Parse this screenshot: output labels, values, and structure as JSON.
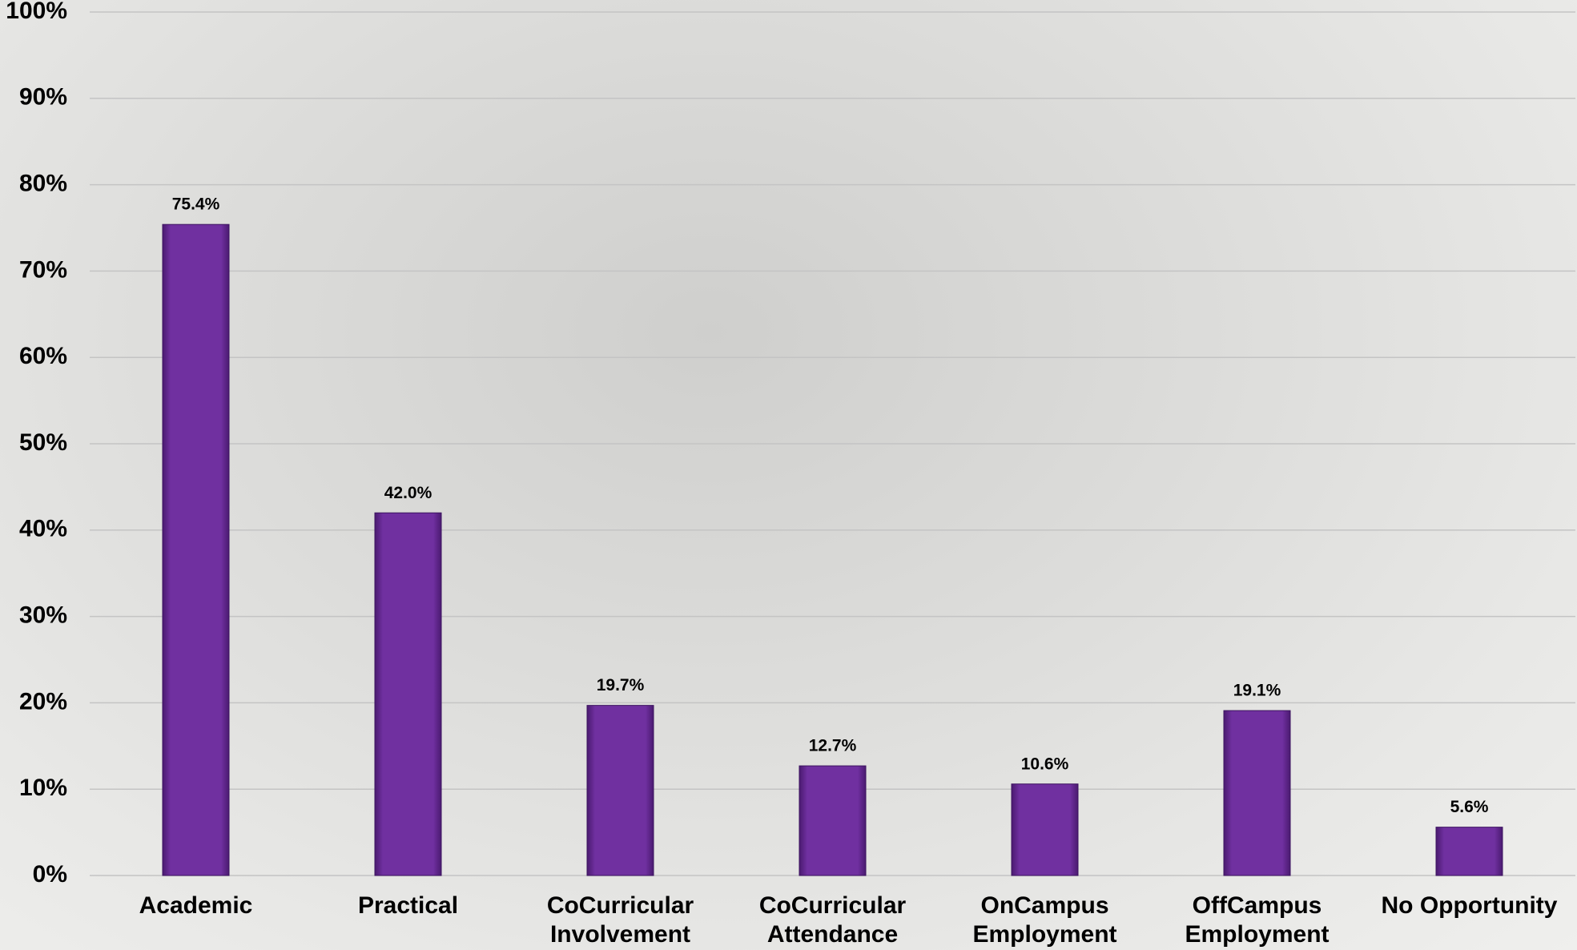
{
  "chart_data": {
    "type": "bar",
    "categories": [
      "Academic",
      "Practical",
      "CoCurricular Involvement",
      "CoCurricular Attendance",
      "OnCampus Employment",
      "OffCampus Employment",
      "No Opportunity"
    ],
    "values": [
      75.4,
      42.0,
      19.7,
      12.7,
      10.6,
      19.1,
      5.6
    ],
    "value_labels": [
      "75.4%",
      "42.0%",
      "19.7%",
      "12.7%",
      "10.6%",
      "19.1%",
      "5.6%"
    ],
    "color": "#7030a0",
    "ylim": [
      0,
      100
    ],
    "yticks": [
      {
        "value": 0,
        "label": "0%"
      },
      {
        "value": 10,
        "label": "10%"
      },
      {
        "value": 20,
        "label": "20%"
      },
      {
        "value": 30,
        "label": "30%"
      },
      {
        "value": 40,
        "label": "40%"
      },
      {
        "value": 50,
        "label": "50%"
      },
      {
        "value": 60,
        "label": "60%"
      },
      {
        "value": 70,
        "label": "70%"
      },
      {
        "value": 80,
        "label": "80%"
      },
      {
        "value": 90,
        "label": "90%"
      },
      {
        "value": 100,
        "label": "100%"
      }
    ],
    "grid": true
  }
}
